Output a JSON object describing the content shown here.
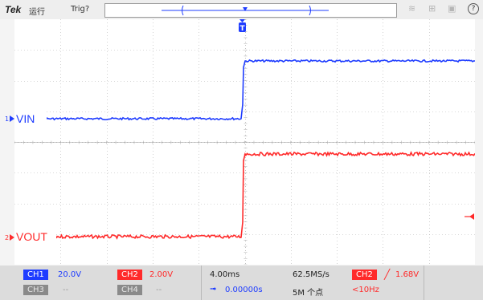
{
  "top_bar": {
    "logo": "Tek",
    "run_state": "运行",
    "trigger_status": "Trig?",
    "trigger_position_marker": "T",
    "help_label": "?"
  },
  "icons": {
    "wifi": "wifi-icon",
    "network": "network-icon",
    "folder": "folder-icon",
    "help": "help-icon"
  },
  "channels": {
    "ch1_label": "VIN",
    "ch1_marker": "1",
    "ch2_label": "VOUT",
    "ch2_marker": "2"
  },
  "colors": {
    "ch1": "#1e3cff",
    "ch2": "#ff2a2a",
    "grid": "#b4b4b4"
  },
  "bottom_bar": {
    "ch1_badge": "CH1",
    "ch1_scale": "20.0V",
    "ch2_badge": "CH2",
    "ch2_scale": "2.00V",
    "ch3_badge": "CH3",
    "ch3_scale": "--",
    "ch4_badge": "CH4",
    "ch4_scale": "--",
    "timebase": "4.00ms",
    "trigger_offset": "0.00000s",
    "sample_rate": "62.5MS/s",
    "record_length": "5M 个点",
    "trigger_source": "CH2",
    "trigger_level": "1.68V",
    "trigger_freq": "<10Hz"
  }
}
